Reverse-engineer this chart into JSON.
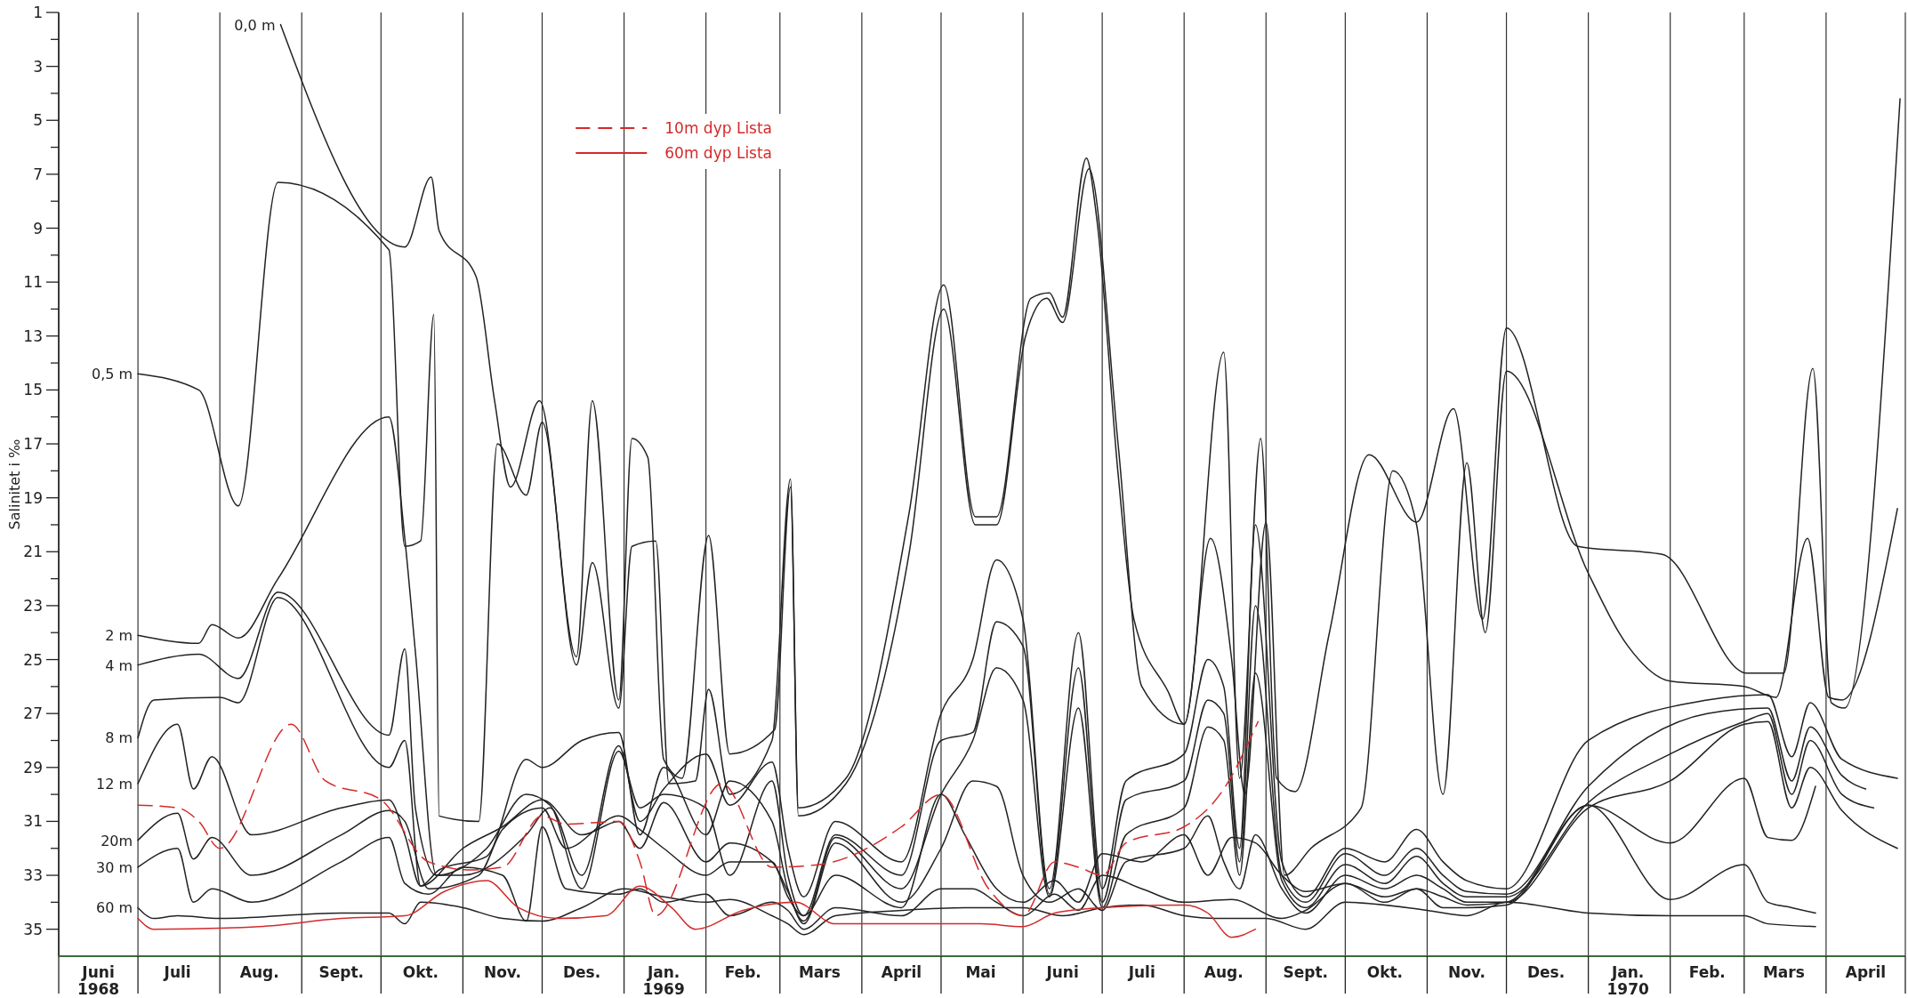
{
  "chart_data": {
    "type": "line",
    "ylabel": "Salinitet i ‰",
    "legend": "top",
    "grid": "x",
    "xlim": [
      "1968-06-01",
      "1970-05-01"
    ],
    "ylim": [
      36,
      1
    ],
    "xticks": [
      {
        "value": "1968-06-01",
        "label": null
      },
      {
        "value": "1968-06-16",
        "label": "Juni\n1968"
      },
      {
        "value": "1968-07-01",
        "label": null
      },
      {
        "value": "1968-07-16",
        "label": "Juli"
      },
      {
        "value": "1968-08-01",
        "label": null
      },
      {
        "value": "1968-08-16",
        "label": "Aug."
      },
      {
        "value": "1968-09-01",
        "label": null
      },
      {
        "value": "1968-09-16",
        "label": "Sept."
      },
      {
        "value": "1968-10-01",
        "label": null
      },
      {
        "value": "1968-10-16",
        "label": "Okt."
      },
      {
        "value": "1968-11-01",
        "label": null
      },
      {
        "value": "1968-11-16",
        "label": "Nov."
      },
      {
        "value": "1968-12-01",
        "label": null
      },
      {
        "value": "1968-12-16",
        "label": "Des."
      },
      {
        "value": "1969-01-01",
        "label": null
      },
      {
        "value": "1969-01-16",
        "label": "Jan.\n1969"
      },
      {
        "value": "1969-02-01",
        "label": null
      },
      {
        "value": "1969-02-15",
        "label": "Feb."
      },
      {
        "value": "1969-03-01",
        "label": null
      },
      {
        "value": "1969-03-16",
        "label": "Mars"
      },
      {
        "value": "1969-04-01",
        "label": null
      },
      {
        "value": "1969-04-16",
        "label": "April"
      },
      {
        "value": "1969-05-01",
        "label": null
      },
      {
        "value": "1969-05-16",
        "label": "Mai"
      },
      {
        "value": "1969-06-01",
        "label": null
      },
      {
        "value": "1969-06-16",
        "label": "Juni"
      },
      {
        "value": "1969-07-01",
        "label": null
      },
      {
        "value": "1969-07-16",
        "label": "Juli"
      },
      {
        "value": "1969-08-01",
        "label": null
      },
      {
        "value": "1969-08-16",
        "label": "Aug."
      },
      {
        "value": "1969-09-01",
        "label": null
      },
      {
        "value": "1969-09-16",
        "label": "Sept."
      },
      {
        "value": "1969-10-01",
        "label": null
      },
      {
        "value": "1969-10-16",
        "label": "Okt."
      },
      {
        "value": "1969-11-01",
        "label": null
      },
      {
        "value": "1969-11-16",
        "label": "Nov."
      },
      {
        "value": "1969-12-01",
        "label": null
      },
      {
        "value": "1969-12-16",
        "label": "Des."
      },
      {
        "value": "1970-01-01",
        "label": null
      },
      {
        "value": "1970-01-16",
        "label": "Jan.\n1970"
      },
      {
        "value": "1970-02-01",
        "label": null
      },
      {
        "value": "1970-02-15",
        "label": "Feb."
      },
      {
        "value": "1970-03-01",
        "label": null
      },
      {
        "value": "1970-03-16",
        "label": "Mars"
      },
      {
        "value": "1970-04-01",
        "label": null
      },
      {
        "value": "1970-04-16",
        "label": "April"
      },
      {
        "value": "1970-05-01",
        "label": null
      }
    ],
    "yticks": [
      1,
      {
        "value": 2,
        "label": null
      },
      3,
      {
        "value": 4,
        "label": null
      },
      5,
      {
        "value": 6,
        "label": null
      },
      7,
      {
        "value": 8,
        "label": null
      },
      9,
      {
        "value": 10,
        "label": null
      },
      11,
      {
        "value": 12,
        "label": null
      },
      13,
      {
        "value": 14,
        "label": null
      },
      15,
      {
        "value": 16,
        "label": null
      },
      17,
      {
        "value": 18,
        "label": null
      },
      19,
      {
        "value": 20,
        "label": null
      },
      21,
      {
        "value": 22,
        "label": null
      },
      23,
      {
        "value": 24,
        "label": null
      },
      25,
      {
        "value": 26,
        "label": null
      },
      27,
      {
        "value": 28,
        "label": null
      },
      29,
      {
        "value": 30,
        "label": null
      },
      31,
      {
        "value": 32,
        "label": null
      },
      33,
      {
        "value": 34,
        "label": null
      },
      35
    ],
    "series": [
      {
        "name": "0,0 m",
        "color": "#222222",
        "x": [
          "1968-08-24",
          "1968-10-10",
          "1968-10-20",
          "1968-10-23",
          "1968-11-06",
          "1968-11-13",
          "1968-11-19",
          "1968-11-30",
          "1968-12-14",
          "1968-12-20",
          "1968-12-30",
          "1969-01-04",
          "1969-01-10",
          "1969-01-16",
          "1969-01-23",
          "1969-02-02",
          "1969-02-10",
          "1969-02-27",
          "1969-03-05",
          "1969-03-08",
          "1969-03-26",
          "1969-04-19",
          "1969-05-02",
          "1969-05-14",
          "1969-05-22",
          "1969-06-04",
          "1969-06-11",
          "1969-06-16",
          "1969-06-25",
          "1969-06-29",
          "1969-07-07",
          "1969-07-13",
          "1969-07-26",
          "1969-08-01",
          "1969-08-16",
          "1969-08-22",
          "1969-08-30",
          "1969-09-05",
          "1969-09-12",
          "1969-09-25",
          "1969-10-10",
          "1969-10-28",
          "1969-11-11",
          "1969-11-22",
          "1969-12-01",
          "1969-12-28",
          "1970-01-29",
          "1970-03-02",
          "1970-03-16",
          "1970-03-27",
          "1970-04-03",
          "1970-04-08",
          "1970-04-29"
        ],
        "values": [
          1.45,
          9.7,
          7.1,
          9.1,
          10.8,
          15.4,
          18.6,
          15.4,
          24.9,
          15.4,
          26.5,
          16.8,
          17.5,
          28.7,
          29.4,
          20.4,
          28.5,
          27.6,
          18.6,
          30.5,
          29.4,
          19.5,
          11.1,
          19.7,
          19.7,
          11.6,
          11.4,
          12.3,
          6.4,
          8.7,
          18.1,
          23.5,
          26.2,
          27.4,
          13.6,
          29.4,
          16.8,
          29.4,
          29.9,
          24,
          17.4,
          19.9,
          15.7,
          23.5,
          12.7,
          20.8,
          21.1,
          25.5,
          25.5,
          14.2,
          26.6,
          26.8,
          4.2
        ]
      },
      {
        "name": "0,5 m",
        "color": "#222222",
        "x": [
          "1968-07-01",
          "1968-07-24",
          "1968-08-08",
          "1968-08-23",
          "1968-10-04",
          "1968-10-10",
          "1968-10-16",
          "1968-10-21",
          "1968-10-23",
          "1968-11-07",
          "1968-11-14",
          "1968-11-25",
          "1968-12-01",
          "1968-12-14",
          "1968-12-20",
          "1968-12-30",
          "1969-01-04",
          "1969-01-13",
          "1969-01-18",
          "1969-01-28",
          "1969-02-02",
          "1969-02-10",
          "1969-02-26",
          "1969-03-05",
          "1969-03-08",
          "1969-03-26",
          "1969-04-19",
          "1969-05-02",
          "1969-05-14",
          "1969-05-22",
          "1969-06-02",
          "1969-06-10",
          "1969-06-16",
          "1969-06-26",
          "1969-07-07",
          "1969-07-16",
          "1969-08-01",
          "1969-08-11",
          "1969-08-19",
          "1969-08-24",
          "1969-09-01",
          "1969-09-08",
          "1969-09-18",
          "1969-10-07",
          "1969-10-19",
          "1969-10-28",
          "1969-11-07",
          "1969-11-16",
          "1969-11-23",
          "1969-12-01",
          "1970-01-01",
          "1970-01-16",
          "1970-02-01",
          "1970-03-01",
          "1970-03-13",
          "1970-03-25",
          "1970-04-02",
          "1970-04-07",
          "1970-04-28"
        ],
        "values": [
          14.4,
          15,
          19.3,
          7.3,
          9.8,
          20.8,
          20.6,
          12.2,
          30.8,
          31,
          17,
          18.9,
          16.2,
          25.2,
          21.4,
          26.8,
          20.8,
          20.6,
          29.6,
          29.5,
          26.1,
          30,
          28,
          18.3,
          30.8,
          29.6,
          21,
          12,
          20,
          20,
          13,
          11.6,
          12.5,
          6.8,
          17,
          26,
          27.4,
          20.5,
          25,
          30,
          19.9,
          33,
          32,
          30.5,
          18,
          20,
          30,
          17.7,
          24,
          14.3,
          21.8,
          24.5,
          25.8,
          26,
          26.4,
          20.5,
          26.4,
          26.5,
          19.4
        ]
      },
      {
        "name": "2 m",
        "color": "#222222",
        "x": [
          "1968-07-01",
          "1968-07-24",
          "1968-07-29",
          "1968-08-08",
          "1968-08-23",
          "1968-10-04",
          "1968-10-10",
          "1968-10-14",
          "1968-10-22",
          "1968-11-01",
          "1968-11-25",
          "1968-12-04",
          "1968-12-16",
          "1968-12-30",
          "1969-01-07",
          "1969-01-16",
          "1969-02-01",
          "1969-02-10",
          "1969-02-26",
          "1969-03-04",
          "1969-03-10",
          "1969-03-22",
          "1969-04-16",
          "1969-05-01",
          "1969-05-13",
          "1969-05-22",
          "1969-06-01",
          "1969-06-11",
          "1969-06-22",
          "1969-07-01",
          "1969-07-10",
          "1969-08-01",
          "1969-08-10",
          "1969-08-16",
          "1969-08-22",
          "1969-08-28",
          "1969-09-07",
          "1969-09-16",
          "1969-10-01",
          "1969-10-16",
          "1969-10-28",
          "1969-11-07",
          "1969-11-16",
          "1969-12-01",
          "1970-01-01",
          "1970-02-15",
          "1970-03-10",
          "1970-03-19",
          "1970-03-26",
          "1970-04-07",
          "1970-04-28"
        ],
        "values": [
          24.1,
          24.4,
          23.7,
          24.2,
          22,
          16,
          20.5,
          24.7,
          33,
          33,
          31.5,
          30.5,
          33,
          28.2,
          31,
          29.8,
          28.5,
          30.4,
          28.8,
          32,
          33.8,
          31,
          32.5,
          27,
          25,
          21.3,
          23.5,
          33.5,
          24,
          33.5,
          29.5,
          28.5,
          25,
          26,
          32,
          20,
          32.5,
          33.8,
          32,
          32.5,
          31.3,
          32.5,
          33.2,
          33.5,
          28,
          26.5,
          26.3,
          28.6,
          26.6,
          28.7,
          29.4
        ]
      },
      {
        "name": "4 m",
        "color": "#222222",
        "x": [
          "1968-07-01",
          "1968-07-24",
          "1968-08-08",
          "1968-08-23",
          "1968-10-04",
          "1968-10-10",
          "1968-10-14",
          "1968-10-22",
          "1968-11-10",
          "1968-11-25",
          "1968-12-04",
          "1968-12-16",
          "1968-12-30",
          "1969-01-07",
          "1969-01-16",
          "1969-02-01",
          "1969-02-10",
          "1969-02-26",
          "1969-03-04",
          "1969-03-10",
          "1969-03-22",
          "1969-04-16",
          "1969-05-01",
          "1969-05-13",
          "1969-05-22",
          "1969-06-01",
          "1969-06-11",
          "1969-06-22",
          "1969-07-01",
          "1969-07-10",
          "1969-08-01",
          "1969-08-10",
          "1969-08-16",
          "1969-08-22",
          "1969-08-28",
          "1969-09-07",
          "1969-09-16",
          "1969-10-01",
          "1969-10-16",
          "1969-10-28",
          "1969-11-07",
          "1969-11-16",
          "1969-12-01",
          "1970-01-01",
          "1970-02-15",
          "1970-03-10",
          "1970-03-19",
          "1970-03-26",
          "1970-04-07",
          "1970-04-16"
        ],
        "values": [
          25.2,
          24.8,
          25.7,
          22.5,
          27.8,
          24.6,
          30.5,
          33,
          32,
          30,
          30.4,
          33.5,
          28.4,
          30.5,
          30,
          30.5,
          33,
          29.5,
          33,
          34.5,
          31.5,
          33,
          28,
          27.7,
          23.6,
          24.5,
          33.7,
          25.3,
          34,
          30.2,
          29.5,
          26.5,
          27,
          32.5,
          23,
          33,
          34,
          32.2,
          33,
          32,
          33,
          33.6,
          33.7,
          29.7,
          27,
          26.8,
          29.5,
          27.5,
          29.3,
          29.8
        ]
      },
      {
        "name": "8 m",
        "color": "#222222",
        "x": [
          "1968-07-01",
          "1968-07-07",
          "1968-08-01",
          "1968-08-08",
          "1968-08-23",
          "1968-10-04",
          "1968-10-10",
          "1968-10-16",
          "1968-10-23",
          "1968-11-10",
          "1968-11-25",
          "1968-12-01",
          "1968-12-16",
          "1968-12-30",
          "1969-01-07",
          "1969-01-16",
          "1969-02-01",
          "1969-02-10",
          "1969-02-26",
          "1969-03-04",
          "1969-03-10",
          "1969-03-22",
          "1969-04-16",
          "1969-05-01",
          "1969-05-13",
          "1969-05-22",
          "1969-06-01",
          "1969-06-11",
          "1969-06-22",
          "1969-07-01",
          "1969-07-10",
          "1969-08-01",
          "1969-08-10",
          "1969-08-16",
          "1969-08-22",
          "1969-08-28",
          "1969-09-07",
          "1969-09-16",
          "1969-10-01",
          "1969-10-16",
          "1969-10-28",
          "1969-11-07",
          "1969-11-16",
          "1969-12-01",
          "1970-01-01",
          "1970-02-01",
          "1970-03-01",
          "1970-03-10",
          "1970-03-19",
          "1970-03-26",
          "1970-04-07",
          "1970-04-19"
        ],
        "values": [
          27.9,
          26.5,
          26.4,
          26.6,
          22.7,
          29,
          28,
          33.4,
          32.8,
          32.3,
          28.7,
          29,
          28,
          27.7,
          31.5,
          29,
          31.5,
          29.5,
          31,
          33.5,
          34.7,
          31.6,
          33.5,
          30,
          28,
          25.3,
          26.5,
          33.8,
          26.8,
          34.2,
          31.5,
          30.5,
          27.5,
          28,
          33,
          25.5,
          33.2,
          34.2,
          32.6,
          33.3,
          32.3,
          33.3,
          33.8,
          33.8,
          30.3,
          28.5,
          27.3,
          27,
          30,
          28,
          30,
          30.5
        ]
      },
      {
        "name": "12 m",
        "color": "#222222",
        "x": [
          "1968-07-01",
          "1968-07-16",
          "1968-07-22",
          "1968-07-29",
          "1968-08-13",
          "1968-09-16",
          "1968-10-04",
          "1968-10-10",
          "1968-10-16",
          "1968-11-01",
          "1968-11-16",
          "1968-12-01",
          "1968-12-16",
          "1968-12-30",
          "1969-01-07",
          "1969-01-16",
          "1969-02-01",
          "1969-02-10",
          "1969-02-26",
          "1969-03-04",
          "1969-03-10",
          "1969-03-22",
          "1969-04-16",
          "1969-05-01",
          "1969-05-13",
          "1969-05-22",
          "1969-06-01",
          "1969-06-11",
          "1969-06-22",
          "1969-07-01",
          "1969-07-10",
          "1969-08-01",
          "1969-08-10",
          "1969-08-16",
          "1969-08-22",
          "1969-08-28",
          "1969-09-07",
          "1969-09-16",
          "1969-10-01",
          "1969-10-16",
          "1969-10-28",
          "1969-11-07",
          "1969-11-16",
          "1969-12-01",
          "1970-01-01",
          "1970-02-01",
          "1970-03-01",
          "1970-03-10",
          "1970-03-19",
          "1970-03-26",
          "1970-04-07",
          "1970-04-28"
        ],
        "values": [
          29.6,
          27.4,
          29.8,
          28.6,
          31.5,
          30.5,
          30.2,
          31.5,
          33.4,
          32,
          31.2,
          30.2,
          31.5,
          31,
          32,
          30.3,
          32.5,
          31.8,
          32.5,
          33.6,
          34.8,
          31.8,
          34,
          32,
          29.5,
          29.7,
          33,
          34,
          33.5,
          34.3,
          32.5,
          32,
          30.8,
          32.5,
          33.5,
          31.5,
          33.5,
          34.4,
          33,
          33.5,
          33,
          33.5,
          34,
          34,
          30.5,
          29.5,
          27.4,
          27.3,
          30.5,
          29,
          30.6,
          32
        ]
      },
      {
        "name": "20m",
        "color": "#222222",
        "x": [
          "1968-07-01",
          "1968-07-16",
          "1968-07-22",
          "1968-07-29",
          "1968-08-13",
          "1968-09-16",
          "1968-10-04",
          "1968-10-10",
          "1968-10-19",
          "1968-11-07",
          "1968-11-16",
          "1968-12-01",
          "1968-12-10",
          "1968-12-30",
          "1969-01-07",
          "1969-01-16",
          "1969-02-01",
          "1969-02-10",
          "1969-02-26",
          "1969-03-04",
          "1969-03-10",
          "1969-03-22",
          "1969-04-16",
          "1969-05-01",
          "1969-05-10",
          "1969-05-22",
          "1969-06-01",
          "1969-06-13",
          "1969-06-22",
          "1969-07-01",
          "1969-07-16",
          "1969-08-01",
          "1969-08-10",
          "1969-08-19",
          "1969-08-28",
          "1969-09-07",
          "1969-09-16",
          "1969-10-01",
          "1969-10-16",
          "1969-10-28",
          "1969-11-07",
          "1969-11-16",
          "1969-12-01",
          "1970-01-01",
          "1970-02-01",
          "1970-03-01",
          "1970-03-10",
          "1970-03-19",
          "1970-03-28"
        ],
        "values": [
          31.7,
          30.7,
          32.4,
          31.6,
          33,
          31.5,
          30.6,
          31,
          33.5,
          33,
          31.3,
          30.5,
          32,
          30.8,
          31.3,
          32,
          33,
          32.5,
          32.5,
          33.8,
          34.5,
          33,
          34.2,
          30,
          31.5,
          33.5,
          34,
          33.2,
          34,
          32.2,
          32.5,
          31.5,
          33,
          31.6,
          31.8,
          33,
          33.6,
          33.3,
          33.8,
          33.5,
          33.8,
          34.1,
          34,
          30.4,
          31.8,
          29.4,
          31.6,
          31.7,
          29.7
        ]
      },
      {
        "name": "30 m",
        "color": "#222222",
        "x": [
          "1968-07-01",
          "1968-07-16",
          "1968-07-22",
          "1968-07-29",
          "1968-08-13",
          "1968-09-16",
          "1968-10-04",
          "1968-10-10",
          "1968-10-19",
          "1968-11-01",
          "1968-11-16",
          "1968-11-25",
          "1968-12-01",
          "1968-12-10",
          "1968-12-30",
          "1969-01-07",
          "1969-01-16",
          "1969-02-01",
          "1969-02-10",
          "1969-02-26",
          "1969-03-04",
          "1969-03-10",
          "1969-03-22",
          "1969-04-16",
          "1969-05-01",
          "1969-05-13",
          "1969-05-22",
          "1969-06-01",
          "1969-06-13",
          "1969-06-22",
          "1969-07-01",
          "1969-07-16",
          "1969-08-01",
          "1969-08-19",
          "1969-09-07",
          "1969-09-16",
          "1969-10-01",
          "1969-10-16",
          "1969-10-28",
          "1969-11-07",
          "1969-11-16",
          "1969-12-01",
          "1970-01-01",
          "1970-02-01",
          "1970-03-01",
          "1970-03-10",
          "1970-03-19",
          "1970-03-28"
        ],
        "values": [
          32.7,
          32,
          34,
          33.5,
          34,
          32.5,
          31.6,
          33.3,
          33.7,
          32.7,
          33,
          34.7,
          31.2,
          33.5,
          33.7,
          33.5,
          34,
          33.7,
          34.5,
          34,
          34.3,
          35,
          34.2,
          34.5,
          33.5,
          33.5,
          34,
          34.5,
          33.7,
          34.3,
          33,
          33.5,
          34,
          33.9,
          34.6,
          34.3,
          33.3,
          34,
          33.5,
          34.2,
          34.2,
          34.1,
          30.4,
          33.9,
          32.6,
          34,
          34.2,
          34.4
        ]
      },
      {
        "name": "60 m",
        "color": "#222222",
        "x": [
          "1968-07-01",
          "1968-07-07",
          "1968-07-16",
          "1968-08-01",
          "1968-09-16",
          "1968-10-04",
          "1968-10-10",
          "1968-10-16",
          "1968-11-01",
          "1968-11-16",
          "1968-12-01",
          "1968-12-16",
          "1969-01-01",
          "1969-01-16",
          "1969-02-01",
          "1969-02-10",
          "1969-02-26",
          "1969-03-04",
          "1969-03-10",
          "1969-03-22",
          "1969-04-16",
          "1969-05-10",
          "1969-06-01",
          "1969-06-16",
          "1969-07-01",
          "1969-07-16",
          "1969-08-01",
          "1969-08-13",
          "1969-09-01",
          "1969-09-16",
          "1969-10-01",
          "1969-11-01",
          "1969-11-16",
          "1969-12-01",
          "1970-01-01",
          "1970-02-01",
          "1970-03-01",
          "1970-03-10",
          "1970-03-28"
        ],
        "values": [
          34.2,
          34.6,
          34.5,
          34.6,
          34.4,
          34.4,
          34.8,
          34,
          34.2,
          34.6,
          34.7,
          34.2,
          33.5,
          33.8,
          34,
          33.9,
          34.5,
          34.8,
          35.2,
          34.5,
          34.3,
          34.2,
          34.2,
          34.5,
          34.2,
          34.1,
          34.5,
          34.6,
          34.6,
          35,
          34,
          34.3,
          34.5,
          34,
          34.4,
          34.5,
          34.5,
          34.8,
          34.9
        ]
      },
      {
        "name": "10m dyp Lista",
        "color": "#d42a2a",
        "line_style": "dashed",
        "x": [
          "1968-07-01",
          "1968-07-16",
          "1968-07-24",
          "1968-08-01",
          "1968-08-28",
          "1968-09-10",
          "1968-10-01",
          "1968-10-19",
          "1968-11-04",
          "1968-11-16",
          "1968-12-01",
          "1968-12-10",
          "1968-12-30",
          "1969-01-07",
          "1969-01-13",
          "1969-02-07",
          "1969-02-26",
          "1969-03-16",
          "1969-04-16",
          "1969-05-01",
          "1969-05-19",
          "1969-06-01",
          "1969-06-13",
          "1969-06-22",
          "1969-07-01",
          "1969-07-10",
          "1969-08-01",
          "1969-08-16",
          "1969-08-29"
        ],
        "values": [
          30.4,
          30.5,
          31,
          32,
          27.4,
          29.5,
          30.2,
          32.5,
          32.8,
          32.7,
          30.8,
          31.1,
          31,
          32.5,
          34.5,
          29.6,
          32.7,
          32.6,
          31.2,
          30,
          33.5,
          34.5,
          32.5,
          32.7,
          33,
          31.8,
          31.2,
          29.8,
          27.3
        ]
      },
      {
        "name": "60m dyp Lista",
        "color": "#d42a2a",
        "line_style": "solid",
        "x": [
          "1968-07-01",
          "1968-07-07",
          "1968-08-16",
          "1968-09-16",
          "1968-10-10",
          "1968-10-25",
          "1968-11-10",
          "1968-11-22",
          "1968-12-07",
          "1968-12-25",
          "1969-01-07",
          "1969-01-19",
          "1969-01-28",
          "1969-02-15",
          "1969-03-07",
          "1969-03-22",
          "1969-04-16",
          "1969-05-16",
          "1969-06-01",
          "1969-06-13",
          "1969-07-01",
          "1969-08-01",
          "1969-08-10",
          "1969-08-19",
          "1969-08-28"
        ],
        "values": [
          34.6,
          35,
          34.9,
          34.6,
          34.5,
          33.6,
          33.2,
          34.2,
          34.6,
          34.5,
          33.4,
          34.2,
          35,
          34.3,
          34,
          34.8,
          34.8,
          34.8,
          34.9,
          34.4,
          34.2,
          34.1,
          34.4,
          35.3,
          35
        ]
      }
    ]
  }
}
